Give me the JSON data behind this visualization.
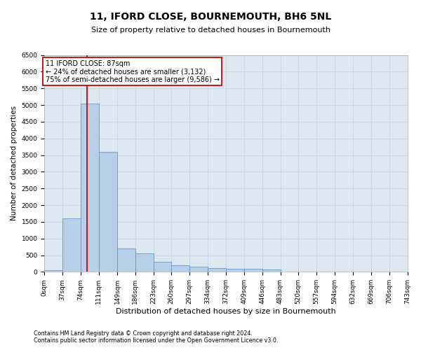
{
  "title": "11, IFORD CLOSE, BOURNEMOUTH, BH6 5NL",
  "subtitle": "Size of property relative to detached houses in Bournemouth",
  "xlabel": "Distribution of detached houses by size in Bournemouth",
  "ylabel": "Number of detached properties",
  "footnote1": "Contains HM Land Registry data © Crown copyright and database right 2024.",
  "footnote2": "Contains public sector information licensed under the Open Government Licence v3.0.",
  "annotation_title": "11 IFORD CLOSE: 87sqm",
  "annotation_line1": "← 24% of detached houses are smaller (3,132)",
  "annotation_line2": "75% of semi-detached houses are larger (9,586) →",
  "property_size_sqm": 87,
  "bin_edges": [
    0,
    37,
    74,
    111,
    149,
    186,
    223,
    260,
    297,
    334,
    372,
    409,
    446,
    483,
    520,
    557,
    594,
    632,
    669,
    706,
    743
  ],
  "bin_counts": [
    50,
    1600,
    5050,
    3600,
    700,
    550,
    300,
    200,
    150,
    110,
    100,
    100,
    80,
    0,
    0,
    0,
    0,
    0,
    0,
    0
  ],
  "bar_color": "#b8cfe8",
  "bar_edge_color": "#6699cc",
  "vline_color": "#cc0000",
  "vline_x": 87,
  "annotation_box_color": "#cc0000",
  "annotation_bg": "white",
  "grid_color": "#c8d4e8",
  "bg_color": "#dce8f0",
  "ylim": [
    0,
    6500
  ],
  "yticks": [
    0,
    500,
    1000,
    1500,
    2000,
    2500,
    3000,
    3500,
    4000,
    4500,
    5000,
    5500,
    6000,
    6500
  ],
  "title_fontsize": 10,
  "subtitle_fontsize": 8,
  "ylabel_fontsize": 7.5,
  "xlabel_fontsize": 8,
  "tick_fontsize": 6.5,
  "annot_fontsize": 7,
  "footnote_fontsize": 5.8
}
